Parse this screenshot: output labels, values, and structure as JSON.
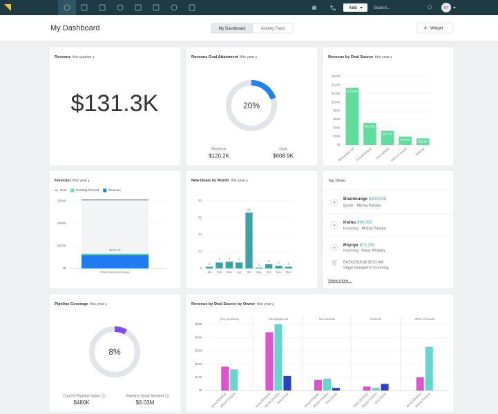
{
  "nav": {
    "add": "Add",
    "search": "Search...",
    "avatar": "MF"
  },
  "header": {
    "title": "My Dashboard",
    "tabs": [
      "My Dashboard",
      "Activity Feed"
    ],
    "widget": "Widget"
  },
  "revenue_card": {
    "title": "Revenue",
    "subtitle": "this quarter",
    "value": "$131.3K"
  },
  "top_deals": {
    "title": "Top Deals",
    "deals": [
      {
        "name": "Brainlounge",
        "amount": "$300,000",
        "detail": "Quote · Michal Pariyka"
      },
      {
        "name": "Kwinu",
        "amount": "$90,000",
        "detail": "Incoming · Michal Pariyka"
      },
      {
        "name": "Rhynyx",
        "amount": "$73,700",
        "detail": "Incoming · Anna Whipkey"
      }
    ],
    "activity": {
      "time": "04/26/2018 @ 05:51 AM",
      "text": "Stage changed to Incoming"
    },
    "show_more": "Show more..."
  },
  "chart_data": [
    {
      "type": "donut",
      "title": "Revenue Goal Attainment",
      "subtitle": "this year",
      "values": [
        20
      ],
      "value_labels": [
        "20%"
      ],
      "color": "#1f80f0",
      "track_color": "#e1e4e8",
      "stats": [
        {
          "label": "Revenue",
          "value": "$120.2K"
        },
        {
          "label": "Goal",
          "value": "$608.9K"
        }
      ]
    },
    {
      "type": "bar",
      "title": "Revenue by Deal Source",
      "subtitle": "this year",
      "categories": [
        "Newspaper ad",
        "(not provided)",
        "Our website",
        "Word of mouth",
        "Referral"
      ],
      "values": [
        133.9,
        51.5,
        33.1,
        19.4,
        15.5
      ],
      "value_labels": [
        "$133.9K",
        "$51.5K",
        "$33.1K",
        "$19.4K",
        "$15.5K"
      ],
      "color": "#5fdd9d",
      "ylim": [
        0,
        160
      ],
      "yticks": [
        {
          "value": 0,
          "label": "$0"
        },
        {
          "value": 20,
          "label": "$20K"
        },
        {
          "value": 40,
          "label": "$40K"
        },
        {
          "value": 60,
          "label": "$60K"
        },
        {
          "value": 80,
          "label": "$80K"
        },
        {
          "value": 100,
          "label": "$100K"
        },
        {
          "value": 120,
          "label": "$120K"
        },
        {
          "value": 140,
          "label": "$140K"
        },
        {
          "value": 160,
          "label": "$160K"
        }
      ],
      "grid": true,
      "value_label_position": "inside"
    },
    {
      "type": "stacked_bar",
      "title": "Forecast",
      "subtitle": "this year",
      "categories": [
        "Total forecasted value"
      ],
      "goal": {
        "name": "Goal",
        "color": "#555555",
        "value": 608.9
      },
      "series": [
        {
          "name": "Pending forecast",
          "color": "#6fe0a8",
          "values": [
            11.1
          ]
        },
        {
          "name": "Revenue",
          "color": "#1f7cf0",
          "values": [
            120.2
          ]
        }
      ],
      "total_label": "$131.3K",
      "ylim": [
        0,
        620
      ],
      "yticks": [
        {
          "value": 0,
          "label": "$0"
        },
        {
          "value": 200,
          "label": "$200K"
        },
        {
          "value": 400,
          "label": "$400K"
        },
        {
          "value": 600,
          "label": "$600K"
        }
      ],
      "grid": true,
      "legend": "top-left"
    },
    {
      "type": "bar",
      "title": "New Deals by Month",
      "subtitle": "this year",
      "categories": [
        "Jan",
        "Feb",
        "Mar",
        "Apr",
        "Jul",
        "Sep",
        "Oct",
        "Nov",
        "Dec"
      ],
      "values": [
        2,
        7,
        8,
        7,
        66,
        1,
        5,
        3,
        2
      ],
      "color": "#3aa3aa",
      "ylim": [
        0,
        80
      ],
      "yticks": [
        0,
        20,
        40,
        60,
        80
      ],
      "grid": true,
      "value_label_position": "above"
    },
    {
      "type": "donut",
      "title": "Pipeline Coverage",
      "subtitle": "this year",
      "values": [
        8
      ],
      "value_labels": [
        "8%"
      ],
      "color": "#7b4dea",
      "track_color": "#e1e4e8",
      "stats": [
        {
          "label": "Current Pipeline Value",
          "value": "$480K"
        },
        {
          "label": "Pipeline Value Needed",
          "value": "$6.03M"
        }
      ]
    },
    {
      "type": "grouped_bar",
      "title": "Revenue by Deal Source by Owner",
      "subtitle": "this year",
      "categories": [
        "(not provided)",
        "Newspaper ad",
        "Our website",
        "Referral",
        "Word of mouth"
      ],
      "series": [
        {
          "name": "Anna Whipkey",
          "color": "#e250d1",
          "values": [
            18,
            44,
            8,
            3,
            10
          ]
        },
        {
          "name": "Michal Pariyka",
          "color": "#62d6cf",
          "values": [
            16,
            50,
            9,
            2,
            33
          ]
        },
        {
          "name": "Vera Duval",
          "color": "#2a3fd6",
          "values": [
            null,
            11,
            2,
            5,
            null
          ]
        }
      ],
      "ylim": [
        0,
        50
      ],
      "yticks": [
        {
          "value": 0,
          "label": "$0"
        },
        {
          "value": 10,
          "label": "$10K"
        },
        {
          "value": 20,
          "label": "$20K"
        },
        {
          "value": 30,
          "label": "$30K"
        },
        {
          "value": 40,
          "label": "$40K"
        },
        {
          "value": 50,
          "label": "$50K"
        }
      ],
      "grid": true
    }
  ]
}
